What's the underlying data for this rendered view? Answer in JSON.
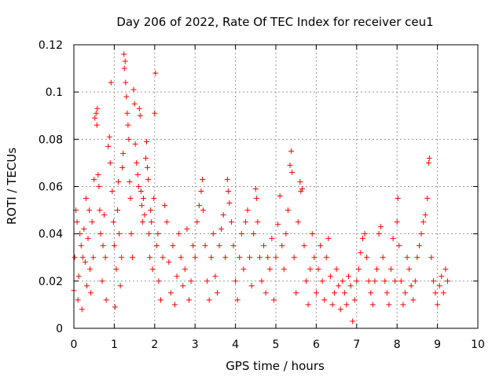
{
  "chart_data": {
    "type": "scatter",
    "title": "Day 206 of 2022, Rate Of TEC Index for receiver ceu1",
    "xlabel": "GPS time / hours",
    "ylabel": "ROTI / TECUs",
    "xlim": [
      0,
      10
    ],
    "ylim": [
      0,
      0.12
    ],
    "x_ticks": [
      "0",
      "1",
      "2",
      "3",
      "4",
      "5",
      "6",
      "7",
      "8",
      "9",
      "10"
    ],
    "y_ticks": [
      "0",
      "0.02",
      "0.04",
      "0.06",
      "0.08",
      "0.1",
      "0.12"
    ],
    "grid": true,
    "marker": "+",
    "color": "#ff0000",
    "series": [
      {
        "name": "ROTI",
        "points": [
          [
            0.0,
            0.016
          ],
          [
            0.02,
            0.03
          ],
          [
            0.05,
            0.05
          ],
          [
            0.08,
            0.045
          ],
          [
            0.1,
            0.012
          ],
          [
            0.12,
            0.022
          ],
          [
            0.15,
            0.04
          ],
          [
            0.18,
            0.035
          ],
          [
            0.2,
            0.008
          ],
          [
            0.22,
            0.03
          ],
          [
            0.25,
            0.042
          ],
          [
            0.28,
            0.028
          ],
          [
            0.3,
            0.055
          ],
          [
            0.32,
            0.018
          ],
          [
            0.35,
            0.038
          ],
          [
            0.38,
            0.05
          ],
          [
            0.4,
            0.025
          ],
          [
            0.42,
            0.015
          ],
          [
            0.45,
            0.045
          ],
          [
            0.48,
            0.03
          ],
          [
            0.5,
            0.063
          ],
          [
            0.52,
            0.089
          ],
          [
            0.55,
            0.091
          ],
          [
            0.57,
            0.086
          ],
          [
            0.58,
            0.093
          ],
          [
            0.6,
            0.065
          ],
          [
            0.62,
            0.06
          ],
          [
            0.64,
            0.05
          ],
          [
            0.66,
            0.04
          ],
          [
            0.7,
            0.02
          ],
          [
            0.72,
            0.035
          ],
          [
            0.75,
            0.048
          ],
          [
            0.78,
            0.03
          ],
          [
            0.8,
            0.012
          ],
          [
            0.85,
            0.077
          ],
          [
            0.88,
            0.081
          ],
          [
            0.9,
            0.07
          ],
          [
            0.92,
            0.104
          ],
          [
            0.95,
            0.058
          ],
          [
            0.98,
            0.045
          ],
          [
            1.0,
            0.035
          ],
          [
            1.02,
            0.009
          ],
          [
            1.05,
            0.025
          ],
          [
            1.08,
            0.05
          ],
          [
            1.1,
            0.062
          ],
          [
            1.12,
            0.04
          ],
          [
            1.15,
            0.018
          ],
          [
            1.18,
            0.03
          ],
          [
            1.2,
            0.068
          ],
          [
            1.22,
            0.074
          ],
          [
            1.24,
            0.116
          ],
          [
            1.25,
            0.11
          ],
          [
            1.27,
            0.113
          ],
          [
            1.28,
            0.104
          ],
          [
            1.3,
            0.098
          ],
          [
            1.32,
            0.091
          ],
          [
            1.34,
            0.086
          ],
          [
            1.36,
            0.08
          ],
          [
            1.38,
            0.062
          ],
          [
            1.4,
            0.055
          ],
          [
            1.42,
            0.04
          ],
          [
            1.45,
            0.03
          ],
          [
            1.48,
            0.101
          ],
          [
            1.5,
            0.095
          ],
          [
            1.52,
            0.078
          ],
          [
            1.55,
            0.07
          ],
          [
            1.58,
            0.065
          ],
          [
            1.6,
            0.06
          ],
          [
            1.62,
            0.093
          ],
          [
            1.64,
            0.09
          ],
          [
            1.66,
            0.058
          ],
          [
            1.68,
            0.052
          ],
          [
            1.7,
            0.045
          ],
          [
            1.72,
            0.055
          ],
          [
            1.75,
            0.048
          ],
          [
            1.78,
            0.072
          ],
          [
            1.8,
            0.079
          ],
          [
            1.82,
            0.068
          ],
          [
            1.84,
            0.063
          ],
          [
            1.86,
            0.04
          ],
          [
            1.88,
            0.03
          ],
          [
            1.9,
            0.05
          ],
          [
            1.92,
            0.045
          ],
          [
            1.95,
            0.025
          ],
          [
            1.98,
            0.055
          ],
          [
            2.0,
            0.091
          ],
          [
            2.02,
            0.108
          ],
          [
            2.05,
            0.035
          ],
          [
            2.08,
            0.04
          ],
          [
            2.1,
            0.02
          ],
          [
            2.15,
            0.012
          ],
          [
            2.2,
            0.03
          ],
          [
            2.25,
            0.052
          ],
          [
            2.3,
            0.045
          ],
          [
            2.35,
            0.028
          ],
          [
            2.4,
            0.015
          ],
          [
            2.45,
            0.035
          ],
          [
            2.5,
            0.01
          ],
          [
            2.55,
            0.022
          ],
          [
            2.6,
            0.04
          ],
          [
            2.65,
            0.03
          ],
          [
            2.7,
            0.018
          ],
          [
            2.75,
            0.025
          ],
          [
            2.8,
            0.042
          ],
          [
            2.85,
            0.012
          ],
          [
            2.9,
            0.02
          ],
          [
            2.95,
            0.035
          ],
          [
            3.0,
            0.03
          ],
          [
            3.05,
            0.045
          ],
          [
            3.1,
            0.052
          ],
          [
            3.15,
            0.058
          ],
          [
            3.18,
            0.063
          ],
          [
            3.2,
            0.05
          ],
          [
            3.25,
            0.035
          ],
          [
            3.3,
            0.02
          ],
          [
            3.35,
            0.012
          ],
          [
            3.4,
            0.03
          ],
          [
            3.45,
            0.04
          ],
          [
            3.5,
            0.022
          ],
          [
            3.55,
            0.015
          ],
          [
            3.6,
            0.035
          ],
          [
            3.65,
            0.042
          ],
          [
            3.7,
            0.048
          ],
          [
            3.75,
            0.03
          ],
          [
            3.8,
            0.063
          ],
          [
            3.82,
            0.058
          ],
          [
            3.85,
            0.053
          ],
          [
            3.9,
            0.045
          ],
          [
            3.95,
            0.035
          ],
          [
            4.0,
            0.02
          ],
          [
            4.05,
            0.012
          ],
          [
            4.1,
            0.03
          ],
          [
            4.15,
            0.04
          ],
          [
            4.2,
            0.025
          ],
          [
            4.25,
            0.045
          ],
          [
            4.3,
            0.05
          ],
          [
            4.35,
            0.03
          ],
          [
            4.4,
            0.018
          ],
          [
            4.45,
            0.04
          ],
          [
            4.5,
            0.059
          ],
          [
            4.52,
            0.055
          ],
          [
            4.55,
            0.045
          ],
          [
            4.6,
            0.03
          ],
          [
            4.65,
            0.02
          ],
          [
            4.7,
            0.035
          ],
          [
            4.75,
            0.015
          ],
          [
            4.8,
            0.03
          ],
          [
            4.85,
            0.025
          ],
          [
            4.9,
            0.038
          ],
          [
            4.95,
            0.012
          ],
          [
            5.0,
            0.03
          ],
          [
            5.05,
            0.044
          ],
          [
            5.1,
            0.056
          ],
          [
            5.15,
            0.035
          ],
          [
            5.2,
            0.025
          ],
          [
            5.25,
            0.04
          ],
          [
            5.3,
            0.05
          ],
          [
            5.35,
            0.069
          ],
          [
            5.38,
            0.075
          ],
          [
            5.4,
            0.066
          ],
          [
            5.45,
            0.03
          ],
          [
            5.5,
            0.015
          ],
          [
            5.55,
            0.045
          ],
          [
            5.6,
            0.062
          ],
          [
            5.62,
            0.058
          ],
          [
            5.65,
            0.059
          ],
          [
            5.7,
            0.035
          ],
          [
            5.75,
            0.02
          ],
          [
            5.8,
            0.01
          ],
          [
            5.85,
            0.025
          ],
          [
            5.9,
            0.04
          ],
          [
            5.95,
            0.03
          ],
          [
            6.0,
            0.015
          ],
          [
            6.05,
            0.025
          ],
          [
            6.1,
            0.035
          ],
          [
            6.15,
            0.02
          ],
          [
            6.2,
            0.012
          ],
          [
            6.25,
            0.03
          ],
          [
            6.3,
            0.038
          ],
          [
            6.35,
            0.022
          ],
          [
            6.4,
            0.01
          ],
          [
            6.45,
            0.015
          ],
          [
            6.5,
            0.025
          ],
          [
            6.55,
            0.018
          ],
          [
            6.6,
            0.008
          ],
          [
            6.65,
            0.02
          ],
          [
            6.7,
            0.015
          ],
          [
            6.75,
            0.01
          ],
          [
            6.8,
            0.022
          ],
          [
            6.85,
            0.018
          ],
          [
            6.9,
            0.003
          ],
          [
            6.95,
            0.012
          ],
          [
            7.0,
            0.02
          ],
          [
            7.05,
            0.025
          ],
          [
            7.1,
            0.032
          ],
          [
            7.15,
            0.038
          ],
          [
            7.2,
            0.04
          ],
          [
            7.25,
            0.03
          ],
          [
            7.3,
            0.02
          ],
          [
            7.35,
            0.015
          ],
          [
            7.4,
            0.01
          ],
          [
            7.45,
            0.02
          ],
          [
            7.5,
            0.025
          ],
          [
            7.55,
            0.04
          ],
          [
            7.6,
            0.043
          ],
          [
            7.65,
            0.03
          ],
          [
            7.7,
            0.02
          ],
          [
            7.75,
            0.015
          ],
          [
            7.8,
            0.01
          ],
          [
            7.85,
            0.025
          ],
          [
            7.9,
            0.038
          ],
          [
            7.95,
            0.02
          ],
          [
            8.0,
            0.045
          ],
          [
            8.02,
            0.055
          ],
          [
            8.05,
            0.035
          ],
          [
            8.1,
            0.02
          ],
          [
            8.15,
            0.01
          ],
          [
            8.2,
            0.015
          ],
          [
            8.25,
            0.03
          ],
          [
            8.3,
            0.025
          ],
          [
            8.35,
            0.018
          ],
          [
            8.4,
            0.012
          ],
          [
            8.45,
            0.02
          ],
          [
            8.5,
            0.03
          ],
          [
            8.55,
            0.035
          ],
          [
            8.6,
            0.04
          ],
          [
            8.65,
            0.045
          ],
          [
            8.7,
            0.048
          ],
          [
            8.75,
            0.055
          ],
          [
            8.78,
            0.07
          ],
          [
            8.8,
            0.072
          ],
          [
            8.85,
            0.03
          ],
          [
            8.9,
            0.02
          ],
          [
            8.95,
            0.015
          ],
          [
            9.0,
            0.01
          ],
          [
            9.05,
            0.018
          ],
          [
            9.1,
            0.022
          ],
          [
            9.15,
            0.015
          ],
          [
            9.2,
            0.025
          ],
          [
            9.25,
            0.02
          ]
        ]
      }
    ]
  }
}
